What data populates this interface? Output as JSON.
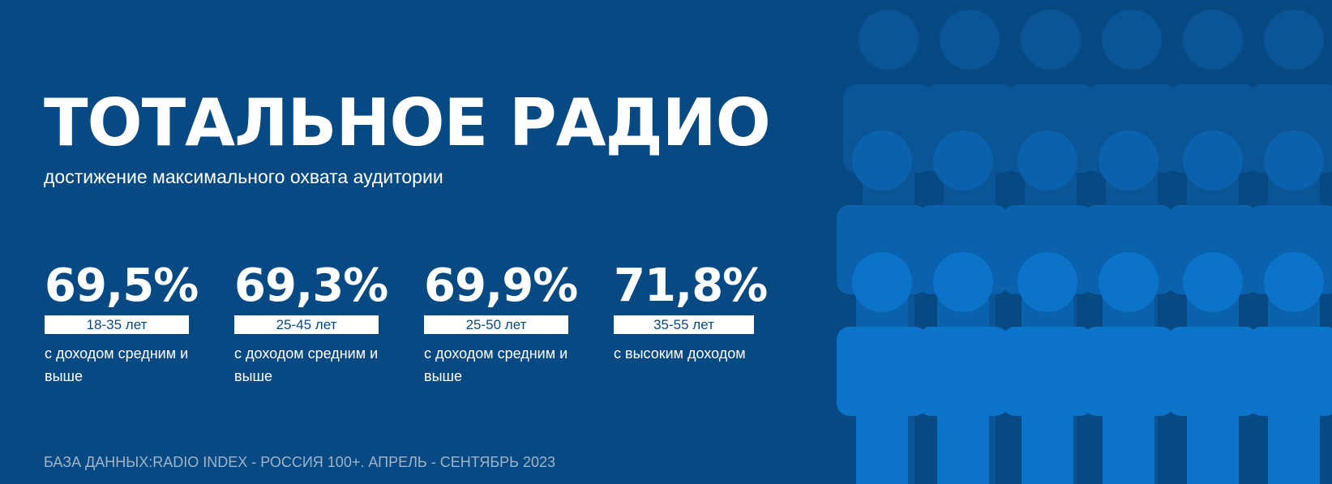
{
  "header": {
    "title": "ТОТАЛЬНОЕ РАДИО",
    "subtitle": "достижение максимального охвата аудитории"
  },
  "stats": [
    {
      "value": "69,5%",
      "age": "18-35 лет",
      "description": "с доходом средним и выше"
    },
    {
      "value": "69,3%",
      "age": "25-45 лет",
      "description": "с доходом средним и выше"
    },
    {
      "value": "69,9%",
      "age": "25-50 лет",
      "description": "с доходом средним и выше"
    },
    {
      "value": "71,8%",
      "age": "35-55 лет",
      "description": "с высоким доходом"
    }
  ],
  "footer": {
    "source": "БАЗА ДАННЫХ:RADIO INDEX - РОССИЯ 100+. АПРЕЛЬ - СЕНТЯБРЬ 2023"
  },
  "illustration": {
    "name": "people-crowd-icon",
    "colors": [
      "#0b5597",
      "#0a62ad",
      "#0b74c9"
    ]
  }
}
